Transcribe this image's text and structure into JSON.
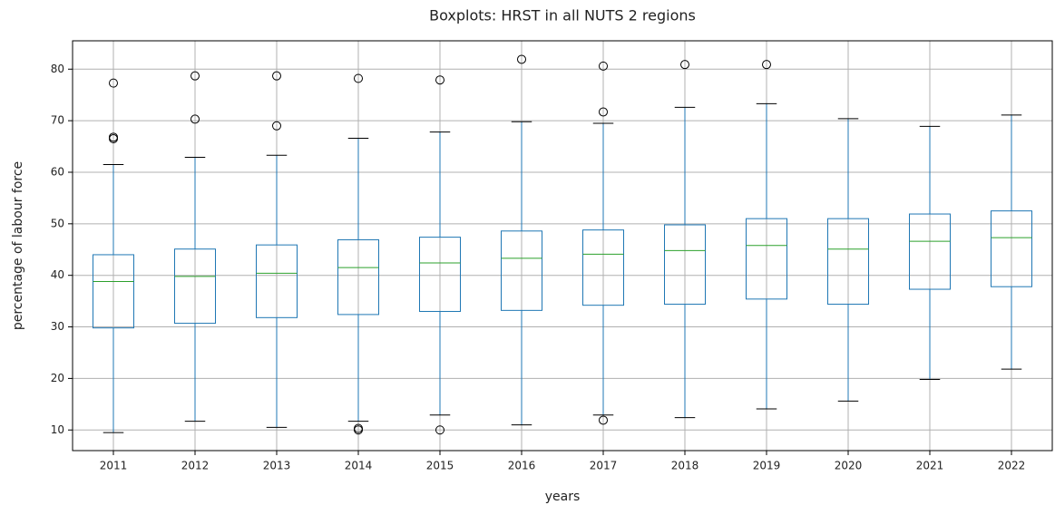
{
  "chart_data": {
    "type": "box",
    "title": "Boxplots: HRST in all NUTS 2 regions",
    "x_label": "years",
    "y_label": "percentage of labour force",
    "categories": [
      "2011",
      "2012",
      "2013",
      "2014",
      "2015",
      "2016",
      "2017",
      "2018",
      "2019",
      "2020",
      "2021",
      "2022"
    ],
    "boxes": [
      {
        "whislo": 9.5,
        "q1": 29.8,
        "med": 38.8,
        "q3": 44,
        "whishi": 61.5,
        "fliers": [
          66.5,
          66.8,
          77.3
        ]
      },
      {
        "whislo": 11.7,
        "q1": 30.7,
        "med": 39.8,
        "q3": 45.1,
        "whishi": 62.9,
        "fliers": [
          70.3,
          78.7
        ]
      },
      {
        "whislo": 10.5,
        "q1": 31.8,
        "med": 40.4,
        "q3": 45.9,
        "whishi": 63.3,
        "fliers": [
          69,
          78.7
        ]
      },
      {
        "whislo": 11.7,
        "q1": 32.4,
        "med": 41.5,
        "q3": 46.9,
        "whishi": 66.6,
        "fliers": [
          10,
          10.3,
          78.2
        ]
      },
      {
        "whislo": 12.9,
        "q1": 33,
        "med": 42.4,
        "q3": 47.4,
        "whishi": 67.8,
        "fliers": [
          10,
          77.9
        ]
      },
      {
        "whislo": 11,
        "q1": 33.2,
        "med": 43.3,
        "q3": 48.6,
        "whishi": 69.8,
        "fliers": [
          81.9
        ]
      },
      {
        "whislo": 12.9,
        "q1": 34.2,
        "med": 44.1,
        "q3": 48.8,
        "whishi": 69.5,
        "fliers": [
          11.9,
          71.7,
          80.6
        ]
      },
      {
        "whislo": 12.4,
        "q1": 34.4,
        "med": 44.8,
        "q3": 49.8,
        "whishi": 72.6,
        "fliers": [
          80.9
        ]
      },
      {
        "whislo": 14.1,
        "q1": 35.4,
        "med": 45.8,
        "q3": 51,
        "whishi": 73.3,
        "fliers": [
          80.9
        ]
      },
      {
        "whislo": 15.6,
        "q1": 34.4,
        "med": 45.1,
        "q3": 51,
        "whishi": 70.4,
        "fliers": []
      },
      {
        "whislo": 19.8,
        "q1": 37.3,
        "med": 46.6,
        "q3": 51.9,
        "whishi": 68.9,
        "fliers": []
      },
      {
        "whislo": 21.8,
        "q1": 37.8,
        "med": 47.3,
        "q3": 52.5,
        "whishi": 71.1,
        "fliers": []
      }
    ],
    "box_color": "#1f77b4",
    "median_color": "#2ca02c",
    "ylim": [
      6,
      85.5
    ],
    "yticks": [
      10,
      20,
      30,
      40,
      50,
      60,
      70,
      80
    ],
    "grid": true
  }
}
